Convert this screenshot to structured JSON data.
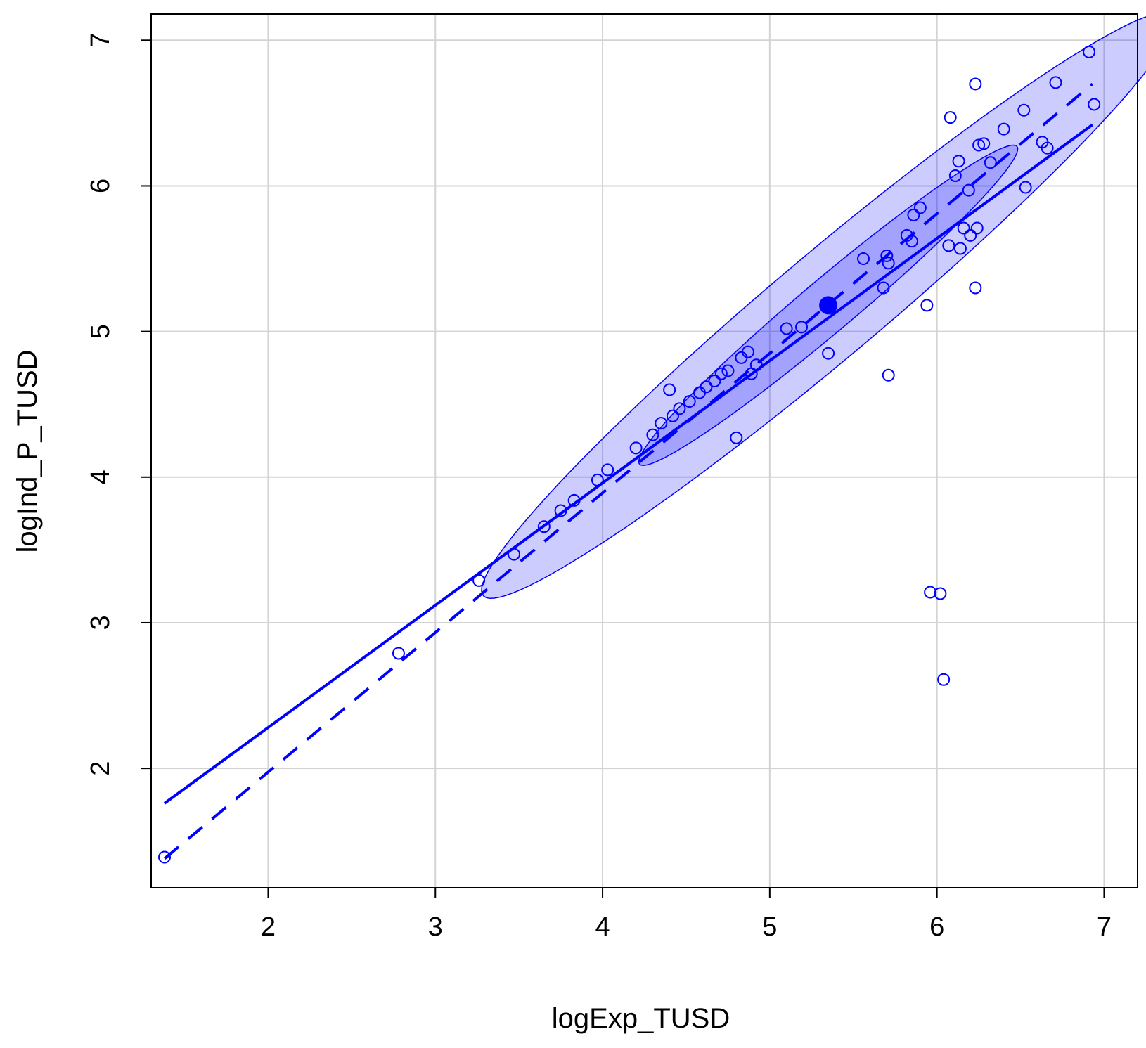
{
  "chart_data": {
    "type": "scatter",
    "title": "",
    "xlabel": "logExp_TUSD",
    "ylabel": "logInd_P_TUSD",
    "xlim": [
      1.3,
      7.2
    ],
    "ylim": [
      1.18,
      7.18
    ],
    "xticks": [
      2,
      3,
      4,
      5,
      6,
      7
    ],
    "yticks": [
      2,
      3,
      4,
      5,
      6,
      7
    ],
    "grid": true,
    "colors": {
      "points": "#0000ff",
      "lines": "#0000ff",
      "ellipse_fill": "#0000ff",
      "grid": "#d3d3d3",
      "frame": "#000000"
    },
    "points": [
      [
        1.38,
        1.39
      ],
      [
        2.78,
        2.79
      ],
      [
        3.26,
        3.29
      ],
      [
        3.47,
        3.47
      ],
      [
        3.65,
        3.66
      ],
      [
        3.75,
        3.77
      ],
      [
        3.83,
        3.84
      ],
      [
        3.97,
        3.98
      ],
      [
        4.03,
        4.05
      ],
      [
        4.2,
        4.2
      ],
      [
        4.3,
        4.29
      ],
      [
        4.35,
        4.37
      ],
      [
        4.4,
        4.6
      ],
      [
        4.42,
        4.42
      ],
      [
        4.46,
        4.47
      ],
      [
        4.52,
        4.52
      ],
      [
        4.58,
        4.58
      ],
      [
        4.62,
        4.62
      ],
      [
        4.67,
        4.66
      ],
      [
        4.71,
        4.71
      ],
      [
        4.75,
        4.73
      ],
      [
        4.8,
        4.27
      ],
      [
        4.83,
        4.82
      ],
      [
        4.87,
        4.86
      ],
      [
        4.89,
        4.71
      ],
      [
        4.92,
        4.77
      ],
      [
        5.1,
        5.02
      ],
      [
        5.19,
        5.03
      ],
      [
        5.35,
        4.85
      ],
      [
        5.56,
        5.5
      ],
      [
        5.68,
        5.3
      ],
      [
        5.7,
        5.52
      ],
      [
        5.71,
        4.7
      ],
      [
        5.71,
        5.47
      ],
      [
        5.82,
        5.66
      ],
      [
        5.85,
        5.62
      ],
      [
        5.86,
        5.8
      ],
      [
        5.9,
        5.85
      ],
      [
        5.94,
        5.18
      ],
      [
        5.96,
        3.21
      ],
      [
        6.02,
        3.2
      ],
      [
        6.04,
        2.61
      ],
      [
        6.07,
        5.59
      ],
      [
        6.08,
        6.47
      ],
      [
        6.11,
        6.07
      ],
      [
        6.13,
        6.17
      ],
      [
        6.14,
        5.57
      ],
      [
        6.16,
        5.71
      ],
      [
        6.19,
        5.97
      ],
      [
        6.2,
        5.66
      ],
      [
        6.23,
        5.3
      ],
      [
        6.23,
        6.7
      ],
      [
        6.24,
        5.71
      ],
      [
        6.25,
        6.28
      ],
      [
        6.28,
        6.29
      ],
      [
        6.32,
        6.16
      ],
      [
        6.4,
        6.39
      ],
      [
        6.52,
        6.52
      ],
      [
        6.53,
        5.99
      ],
      [
        6.63,
        6.3
      ],
      [
        6.66,
        6.26
      ],
      [
        6.71,
        6.71
      ],
      [
        6.91,
        6.92
      ],
      [
        6.94,
        6.56
      ]
    ],
    "centroid": [
      5.35,
      5.18
    ],
    "regression_solid": [
      [
        1.38,
        1.76
      ],
      [
        6.93,
        6.42
      ]
    ],
    "regression_dashed": [
      [
        1.38,
        1.38
      ],
      [
        6.93,
        6.7
      ]
    ],
    "ellipse_levels": [
      "inner",
      "outer"
    ]
  },
  "axes": {
    "xlabel": "logExp_TUSD",
    "ylabel": "logInd_P_TUSD"
  }
}
